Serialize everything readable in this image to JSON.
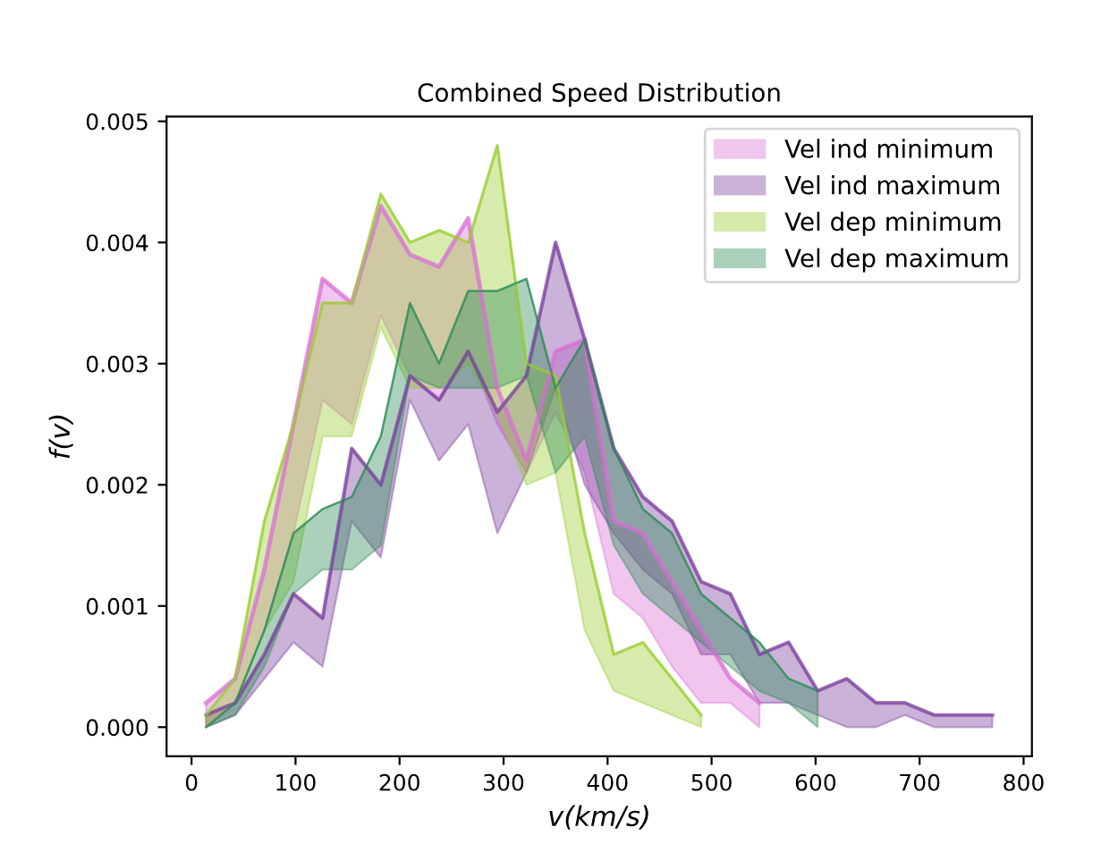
{
  "chart_data": {
    "type": "line",
    "marker": "none",
    "title": "Combined Speed Distribution",
    "xlabel": "v(km/s)",
    "ylabel": "f(v)",
    "xlim": [
      -24,
      808
    ],
    "ylim": [
      -0.00024,
      0.00504
    ],
    "xticks": [
      0,
      100,
      200,
      300,
      400,
      500,
      600,
      700,
      800
    ],
    "yticks": [
      {
        "value": 0,
        "label": "0.000"
      },
      {
        "value": 0.001,
        "label": "0.001"
      },
      {
        "value": 0.002,
        "label": "0.002"
      },
      {
        "value": 0.003,
        "label": "0.003"
      },
      {
        "value": 0.004,
        "label": "0.004"
      },
      {
        "value": 0.005,
        "label": "0.005"
      }
    ],
    "legend": "top right",
    "grid": false,
    "series": [
      {
        "name": "Vel ind minimum",
        "color": "#da70d6",
        "x": [
          14,
          42,
          70,
          98,
          126,
          154,
          182,
          210,
          238,
          266,
          294,
          322,
          350,
          378,
          406,
          434,
          462,
          490,
          518,
          546
        ],
        "values": [
          0.0002,
          0.0004,
          0.0013,
          0.0025,
          0.0037,
          0.0035,
          0.0043,
          0.0039,
          0.0038,
          0.0042,
          0.0028,
          0.0022,
          0.0031,
          0.0032,
          0.0017,
          0.0016,
          0.0012,
          0.0008,
          0.0004,
          0.0002
        ],
        "upper": [
          0.0002,
          0.0004,
          0.0013,
          0.0025,
          0.0037,
          0.0035,
          0.0043,
          0.0039,
          0.0038,
          0.0042,
          0.0028,
          0.0022,
          0.0031,
          0.0032,
          0.0017,
          0.0016,
          0.0012,
          0.0008,
          0.0004,
          0.0002
        ],
        "lower": [
          0,
          0.0002,
          0.0008,
          0.0016,
          0.0027,
          0.0025,
          0.0034,
          0.0029,
          0.0027,
          0.0031,
          0.0025,
          0.0021,
          0.0026,
          0.0021,
          0.0011,
          0.0009,
          0.0005,
          0.0002,
          0.0002,
          0
        ]
      },
      {
        "name": "Vel ind maximum",
        "color": "#7b3f9e",
        "x": [
          14,
          42,
          70,
          98,
          126,
          154,
          182,
          210,
          238,
          266,
          294,
          322,
          350,
          378,
          406,
          434,
          462,
          490,
          518,
          546,
          574,
          602,
          630,
          658,
          686,
          714,
          742,
          770
        ],
        "values": [
          0.0001,
          0.0002,
          0.0006,
          0.0011,
          0.0009,
          0.0023,
          0.002,
          0.0029,
          0.0027,
          0.0031,
          0.0026,
          0.0029,
          0.004,
          0.0032,
          0.0023,
          0.0019,
          0.0017,
          0.0012,
          0.0011,
          0.0006,
          0.0007,
          0.0003,
          0.0004,
          0.0002,
          0.0002,
          0.0001,
          0.0001,
          0.0001
        ],
        "upper": [
          0.0001,
          0.0002,
          0.0006,
          0.0011,
          0.0009,
          0.0023,
          0.002,
          0.0029,
          0.0027,
          0.0031,
          0.0026,
          0.0029,
          0.004,
          0.0032,
          0.0023,
          0.0019,
          0.0017,
          0.0012,
          0.0011,
          0.0006,
          0.0007,
          0.0003,
          0.0004,
          0.0002,
          0.0002,
          0.0001,
          0.0001,
          0.0001
        ],
        "lower": [
          0,
          0.0001,
          0.0004,
          0.0007,
          0.0005,
          0.0017,
          0.0014,
          0.0027,
          0.0022,
          0.0025,
          0.0016,
          0.0021,
          0.0028,
          0.002,
          0.0016,
          0.0013,
          0.0011,
          0.0006,
          0.0006,
          0.0002,
          0.0002,
          0.0001,
          0,
          0,
          0.0001,
          0,
          0,
          0
        ]
      },
      {
        "name": "Vel dep minimum",
        "color": "#9acd32",
        "x": [
          14,
          42,
          70,
          98,
          126,
          154,
          182,
          210,
          238,
          266,
          294,
          322,
          350,
          378,
          406,
          434,
          462,
          490
        ],
        "values": [
          0.0001,
          0.0004,
          0.0017,
          0.0025,
          0.0035,
          0.0035,
          0.0044,
          0.004,
          0.0041,
          0.004,
          0.0048,
          0.003,
          0.0029,
          0.0016,
          0.0006,
          0.0007,
          0.0004,
          0.0001
        ],
        "upper": [
          0.0001,
          0.0004,
          0.0017,
          0.0025,
          0.0035,
          0.0035,
          0.0044,
          0.004,
          0.0041,
          0.004,
          0.0048,
          0.003,
          0.0029,
          0.0016,
          0.0006,
          0.0007,
          0.0004,
          0.0001
        ],
        "lower": [
          0,
          0.0002,
          0.0008,
          0.0012,
          0.0024,
          0.0024,
          0.0033,
          0.0028,
          0.0028,
          0.003,
          0.0026,
          0.002,
          0.0021,
          0.0008,
          0.0003,
          0.0002,
          0.0001,
          0
        ]
      },
      {
        "name": "Vel dep maximum",
        "color": "#2e8b57",
        "x": [
          14,
          42,
          70,
          98,
          126,
          154,
          182,
          210,
          238,
          266,
          294,
          322,
          350,
          378,
          406,
          434,
          462,
          490,
          518,
          546,
          574,
          602
        ],
        "values": [
          0,
          0.0002,
          0.0008,
          0.0016,
          0.0018,
          0.0019,
          0.0024,
          0.0035,
          0.003,
          0.0036,
          0.0036,
          0.0037,
          0.0028,
          0.0032,
          0.0023,
          0.0018,
          0.0016,
          0.0011,
          0.0009,
          0.0007,
          0.0004,
          0.0003
        ],
        "upper": [
          0,
          0.0002,
          0.0008,
          0.0016,
          0.0018,
          0.0019,
          0.0024,
          0.0035,
          0.003,
          0.0036,
          0.0036,
          0.0037,
          0.0028,
          0.0032,
          0.0023,
          0.0018,
          0.0016,
          0.0011,
          0.0009,
          0.0007,
          0.0004,
          0.0003
        ],
        "lower": [
          0,
          0.0001,
          0.0005,
          0.0011,
          0.0013,
          0.0013,
          0.0015,
          0.0029,
          0.0028,
          0.0028,
          0.0028,
          0.0029,
          0.0021,
          0.0024,
          0.0015,
          0.0011,
          0.0009,
          0.0007,
          0.0005,
          0.0003,
          0.0002,
          0
        ]
      }
    ]
  }
}
